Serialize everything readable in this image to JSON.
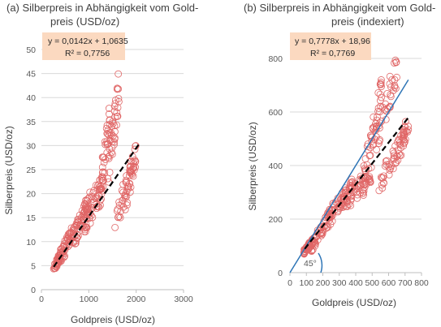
{
  "chart_data": [
    {
      "type": "scatter",
      "title": "(a) Silberpreis in Abhängigkeit vom Gold-preis",
      "title_lines": [
        "(a) Silberpreis in Abhängigkeit vom Gold-",
        "preis (USD/oz)"
      ],
      "xlabel": "Goldpreis (USD/oz)",
      "ylabel": "Silberpreis (USD/oz)",
      "xlim": [
        0,
        3000
      ],
      "ylim": [
        0,
        50
      ],
      "xticks": [
        "0",
        "1000",
        "2000",
        "3000"
      ],
      "yticks": [
        "0",
        "5",
        "10",
        "15",
        "20",
        "25",
        "30",
        "35",
        "40",
        "45",
        "50"
      ],
      "grid": "horizontal",
      "equation": "y = 0,0142x + 1,0635",
      "r2": "R² = 0,7756",
      "trendline": {
        "slope": 0.0142,
        "intercept": 1.0635,
        "x_range": [
          260,
          2050
        ],
        "style": "dashed",
        "color": "#000000"
      },
      "marker_color": "#e06666",
      "series_segments": [
        {
          "x": [
            255,
            420
          ],
          "y": [
            4.2,
            7.5
          ],
          "n": 40,
          "spread": 0.8
        },
        {
          "x": [
            380,
            700
          ],
          "y": [
            6.5,
            12.5
          ],
          "n": 50,
          "spread": 1.6
        },
        {
          "x": [
            650,
            1050
          ],
          "y": [
            10,
            19
          ],
          "n": 60,
          "spread": 2.2
        },
        {
          "x": [
            900,
            1300
          ],
          "y": [
            14,
            22
          ],
          "n": 50,
          "spread": 2.8
        },
        {
          "x": [
            1200,
            1450
          ],
          "y": [
            18,
            36
          ],
          "n": 40,
          "spread": 3.5
        },
        {
          "x": [
            1400,
            1650
          ],
          "y": [
            24,
            43
          ],
          "n": 40,
          "spread": 4
        },
        {
          "x": [
            1550,
            1900
          ],
          "y": [
            14,
            24
          ],
          "n": 35,
          "spread": 3
        },
        {
          "x": [
            1750,
            2000
          ],
          "y": [
            18,
            29
          ],
          "n": 30,
          "spread": 3
        }
      ]
    },
    {
      "type": "scatter",
      "title": "(b) Silberpreis in Abhängigkeit vom Gold-preis (indexiert)",
      "title_lines": [
        "(b) Silberpreis in Abhängigkeit vom Gold-",
        "preis (indexiert)"
      ],
      "xlabel": "Goldpreis (USD/oz)",
      "ylabel": "Silberpreis (USD/oz)",
      "xlim": [
        0,
        800
      ],
      "ylim": [
        0,
        800
      ],
      "xticks": [
        "0",
        "100",
        "200",
        "300",
        "400",
        "500",
        "600",
        "700",
        "800"
      ],
      "yticks": [
        "0",
        "200",
        "400",
        "600",
        "800"
      ],
      "grid": "horizontal",
      "equation": "y = 0,7778x + 18,96",
      "r2": "R² = 0,7769",
      "trendline": {
        "slope": 0.7778,
        "intercept": 18.96,
        "x_range": [
          90,
          720
        ],
        "style": "dashed",
        "color": "#000000"
      },
      "diagonal": {
        "slope": 1,
        "intercept": 0,
        "x_range": [
          0,
          720
        ],
        "color": "#2e75b6"
      },
      "angle_label": "45°",
      "marker_color": "#e06666",
      "series_segments": [
        {
          "x": [
            85,
            140
          ],
          "y": [
            75,
            120
          ],
          "n": 40,
          "spread": 12
        },
        {
          "x": [
            130,
            260
          ],
          "y": [
            100,
            230
          ],
          "n": 55,
          "spread": 25
        },
        {
          "x": [
            230,
            380
          ],
          "y": [
            200,
            320
          ],
          "n": 55,
          "spread": 35
        },
        {
          "x": [
            330,
            500
          ],
          "y": [
            270,
            360
          ],
          "n": 50,
          "spread": 40
        },
        {
          "x": [
            440,
            560
          ],
          "y": [
            320,
            700
          ],
          "n": 50,
          "spread": 60
        },
        {
          "x": [
            520,
            660
          ],
          "y": [
            500,
            780
          ],
          "n": 40,
          "spread": 60
        },
        {
          "x": [
            540,
            700
          ],
          "y": [
            330,
            500
          ],
          "n": 35,
          "spread": 40
        },
        {
          "x": [
            620,
            720
          ],
          "y": [
            400,
            560
          ],
          "n": 30,
          "spread": 40
        }
      ]
    }
  ]
}
